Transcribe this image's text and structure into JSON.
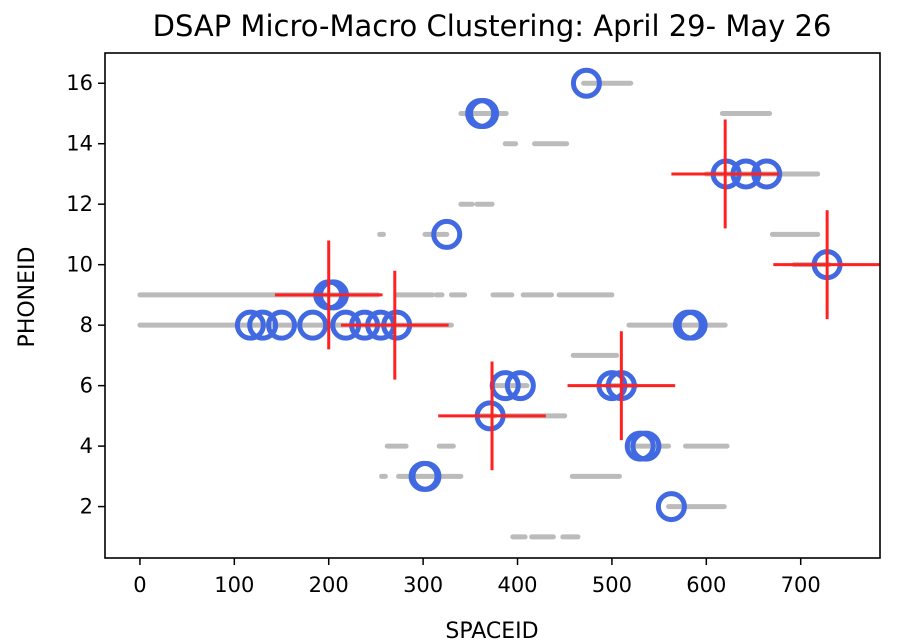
{
  "chart_data": {
    "type": "scatter",
    "title": "DSAP Micro-Macro Clustering: April 29- May 26",
    "xlabel": "SPACEID",
    "ylabel": "PHONEID",
    "xlim": [
      -37,
      784
    ],
    "ylim": [
      0.3,
      17
    ],
    "xticks": [
      0,
      100,
      200,
      300,
      400,
      500,
      600,
      700
    ],
    "yticks": [
      2,
      4,
      6,
      8,
      10,
      12,
      14,
      16
    ],
    "grid": false,
    "colors": {
      "raw": "#bbbbbb",
      "micro": "#4169e1",
      "macro": "#ff2020"
    },
    "raw_segments": [
      {
        "y": 16,
        "x": [
          470,
          520
        ]
      },
      {
        "y": 15,
        "x": [
          340,
          388
        ]
      },
      {
        "y": 15,
        "x": [
          617,
          667
        ]
      },
      {
        "y": 14,
        "x": [
          387,
          398
        ]
      },
      {
        "y": 14,
        "x": [
          418,
          452
        ]
      },
      {
        "y": 13,
        "x": [
          600,
          718
        ]
      },
      {
        "y": 12,
        "x": [
          340,
          352
        ]
      },
      {
        "y": 12,
        "x": [
          357,
          373
        ]
      },
      {
        "y": 11,
        "x": [
          254,
          258
        ]
      },
      {
        "y": 11,
        "x": [
          302,
          325
        ]
      },
      {
        "y": 11,
        "x": [
          670,
          718
        ]
      },
      {
        "y": 10,
        "x": [
          693,
          730
        ]
      },
      {
        "y": 9,
        "x": [
          0,
          252
        ]
      },
      {
        "y": 9,
        "x": [
          272,
          310
        ]
      },
      {
        "y": 9,
        "x": [
          314,
          320
        ]
      },
      {
        "y": 9,
        "x": [
          330,
          344
        ]
      },
      {
        "y": 9,
        "x": [
          374,
          394
        ]
      },
      {
        "y": 9,
        "x": [
          406,
          436
        ]
      },
      {
        "y": 9,
        "x": [
          444,
          500
        ]
      },
      {
        "y": 8,
        "x": [
          0,
          330
        ]
      },
      {
        "y": 8,
        "x": [
          518,
          620
        ]
      },
      {
        "y": 7,
        "x": [
          459,
          505
        ]
      },
      {
        "y": 6,
        "x": [
          373,
          410
        ]
      },
      {
        "y": 6,
        "x": [
          494,
          526
        ]
      },
      {
        "y": 5,
        "x": [
          360,
          376
        ]
      },
      {
        "y": 5,
        "x": [
          386,
          450
        ]
      },
      {
        "y": 4,
        "x": [
          262,
          282
        ]
      },
      {
        "y": 4,
        "x": [
          317,
          332
        ]
      },
      {
        "y": 4,
        "x": [
          521,
          560
        ]
      },
      {
        "y": 4,
        "x": [
          578,
          622
        ]
      },
      {
        "y": 3,
        "x": [
          256,
          260
        ]
      },
      {
        "y": 3,
        "x": [
          274,
          340
        ]
      },
      {
        "y": 3,
        "x": [
          458,
          508
        ]
      },
      {
        "y": 2,
        "x": [
          560,
          619
        ]
      },
      {
        "y": 1,
        "x": [
          395,
          408
        ]
      },
      {
        "y": 1,
        "x": [
          415,
          438
        ]
      },
      {
        "y": 1,
        "x": [
          448,
          464
        ]
      }
    ],
    "micro_clusters": [
      {
        "x": 473,
        "y": 16
      },
      {
        "x": 361,
        "y": 15
      },
      {
        "x": 364,
        "y": 15
      },
      {
        "x": 621,
        "y": 13
      },
      {
        "x": 642,
        "y": 13
      },
      {
        "x": 664,
        "y": 13
      },
      {
        "x": 325,
        "y": 11
      },
      {
        "x": 728,
        "y": 10
      },
      {
        "x": 200,
        "y": 9
      },
      {
        "x": 205,
        "y": 9
      },
      {
        "x": 117,
        "y": 8
      },
      {
        "x": 130,
        "y": 8
      },
      {
        "x": 150,
        "y": 8
      },
      {
        "x": 183,
        "y": 8
      },
      {
        "x": 218,
        "y": 8
      },
      {
        "x": 238,
        "y": 8
      },
      {
        "x": 255,
        "y": 8
      },
      {
        "x": 272,
        "y": 8
      },
      {
        "x": 581,
        "y": 8
      },
      {
        "x": 585,
        "y": 8
      },
      {
        "x": 387,
        "y": 6
      },
      {
        "x": 403,
        "y": 6
      },
      {
        "x": 500,
        "y": 6
      },
      {
        "x": 510,
        "y": 6
      },
      {
        "x": 371,
        "y": 5
      },
      {
        "x": 530,
        "y": 4
      },
      {
        "x": 536,
        "y": 4
      },
      {
        "x": 301,
        "y": 3
      },
      {
        "x": 303,
        "y": 3
      },
      {
        "x": 563,
        "y": 2
      }
    ],
    "macro_clusters": [
      {
        "x": 620,
        "y": 13,
        "x_err": 57,
        "y_err": 1.8
      },
      {
        "x": 728,
        "y": 10,
        "x_err": 57,
        "y_err": 1.8
      },
      {
        "x": 200,
        "y": 9,
        "x_err": 57,
        "y_err": 1.8
      },
      {
        "x": 270,
        "y": 8,
        "x_err": 57,
        "y_err": 1.8
      },
      {
        "x": 510,
        "y": 6,
        "x_err": 57,
        "y_err": 1.8
      },
      {
        "x": 373,
        "y": 5,
        "x_err": 57,
        "y_err": 1.8
      }
    ]
  }
}
